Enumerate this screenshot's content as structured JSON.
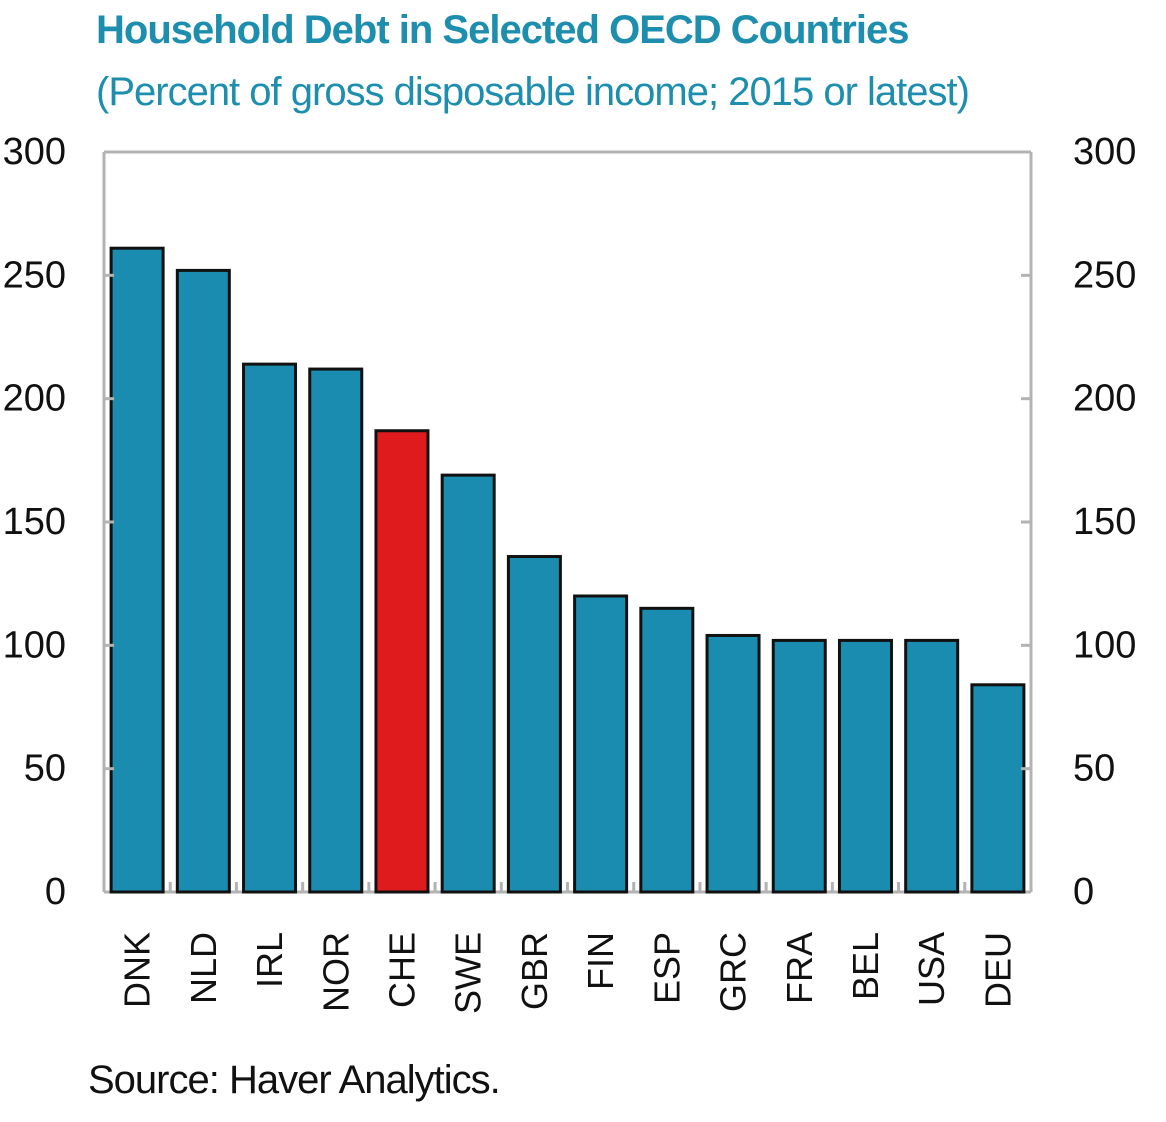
{
  "title": "Household Debt in Selected OECD Countries",
  "subtitle": "(Percent of gross disposable income; 2015 or latest)",
  "source": "Source: Haver Analytics.",
  "colors": {
    "bar": "#1a8caf",
    "highlight": "#e01b1e",
    "title": "#1e8eae",
    "axis": "#b3b3b3"
  },
  "chart_data": {
    "type": "bar",
    "categories": [
      "DNK",
      "NLD",
      "IRL",
      "NOR",
      "CHE",
      "SWE",
      "GBR",
      "FIN",
      "ESP",
      "GRC",
      "FRA",
      "BEL",
      "USA",
      "DEU"
    ],
    "values": [
      261,
      252,
      214,
      212,
      187,
      169,
      136,
      120,
      115,
      104,
      102,
      102,
      102,
      84
    ],
    "highlight": "CHE",
    "ylim": [
      0,
      300
    ],
    "yticks": [
      "0",
      "50",
      "100",
      "150",
      "200",
      "250",
      "300"
    ],
    "axes": "left-and-right",
    "grid": false,
    "xlabel": "",
    "ylabel": ""
  }
}
